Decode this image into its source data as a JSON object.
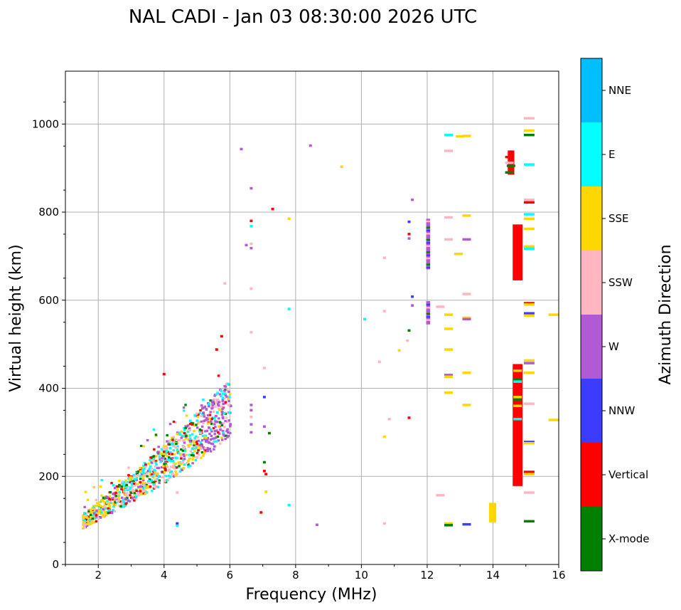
{
  "chart_data": {
    "type": "scatter",
    "title": "NAL CADI - Jan 03 08:30:00 2026 UTC",
    "xlabel": "Frequency (MHz)",
    "ylabel": "Virtual height (km)",
    "xlim": [
      1,
      16
    ],
    "ylim": [
      0,
      1120
    ],
    "xticks": [
      2,
      4,
      6,
      8,
      10,
      12,
      14,
      16
    ],
    "yticks": [
      0,
      200,
      400,
      600,
      800,
      1000
    ],
    "grid": true,
    "colorbar": {
      "title": "Azimuth Direction",
      "categories": [
        {
          "name": "X-mode",
          "color": "#008000"
        },
        {
          "name": "Vertical",
          "color": "#ff0000"
        },
        {
          "name": "NNW",
          "color": "#3c3cff"
        },
        {
          "name": "W",
          "color": "#b25ad4"
        },
        {
          "name": "SSW",
          "color": "#ffb6c1"
        },
        {
          "name": "SSE",
          "color": "#ffd700"
        },
        {
          "name": "E",
          "color": "#00ffff"
        },
        {
          "name": "NNE",
          "color": "#00bfff"
        }
      ]
    },
    "bars": [
      {
        "x0": 14.45,
        "x1": 14.65,
        "y0": 885,
        "y1": 940,
        "dir": "Vertical"
      },
      {
        "x0": 14.6,
        "x1": 14.9,
        "y0": 645,
        "y1": 772,
        "dir": "Vertical"
      },
      {
        "x0": 14.6,
        "x1": 14.9,
        "y0": 178,
        "y1": 455,
        "dir": "Vertical"
      },
      {
        "x0": 13.88,
        "x1": 14.1,
        "y0": 95,
        "y1": 140,
        "dir": "SSE"
      },
      {
        "x0": 11.97,
        "x1": 12.09,
        "y0": 670,
        "y1": 785,
        "dir": "W"
      },
      {
        "x0": 11.97,
        "x1": 12.09,
        "y0": 545,
        "y1": 598,
        "dir": "W"
      }
    ],
    "points": [
      {
        "f": 14.5,
        "h": 925,
        "dir": "Vertical"
      },
      {
        "f": 14.55,
        "h": 905,
        "dir": "X-mode"
      },
      {
        "f": 14.5,
        "h": 912,
        "dir": "SSW"
      },
      {
        "f": 14.5,
        "h": 890,
        "dir": "X-mode"
      },
      {
        "f": 14.75,
        "h": 420,
        "dir": "X-mode"
      },
      {
        "f": 14.75,
        "h": 440,
        "dir": "SSE"
      },
      {
        "f": 14.75,
        "h": 375,
        "dir": "X-mode"
      },
      {
        "f": 14.75,
        "h": 360,
        "dir": "SSE"
      },
      {
        "f": 14.75,
        "h": 330,
        "dir": "E"
      },
      {
        "f": 14.75,
        "h": 415,
        "dir": "E"
      },
      {
        "f": 14.75,
        "h": 380,
        "dir": "SSE"
      },
      {
        "f": 15.1,
        "h": 1013,
        "dir": "SSW"
      },
      {
        "f": 15.1,
        "h": 985,
        "dir": "SSE"
      },
      {
        "f": 15.1,
        "h": 975,
        "dir": "X-mode"
      },
      {
        "f": 15.1,
        "h": 908,
        "dir": "E"
      },
      {
        "f": 15.1,
        "h": 828,
        "dir": "SSW"
      },
      {
        "f": 15.1,
        "h": 822,
        "dir": "Vertical"
      },
      {
        "f": 15.1,
        "h": 795,
        "dir": "E"
      },
      {
        "f": 15.1,
        "h": 785,
        "dir": "SSE"
      },
      {
        "f": 15.1,
        "h": 762,
        "dir": "SSE"
      },
      {
        "f": 15.1,
        "h": 722,
        "dir": "SSE"
      },
      {
        "f": 15.1,
        "h": 717,
        "dir": "E"
      },
      {
        "f": 15.1,
        "h": 593,
        "dir": "Vertical"
      },
      {
        "f": 15.1,
        "h": 590,
        "dir": "SSE"
      },
      {
        "f": 15.1,
        "h": 570,
        "dir": "NNW"
      },
      {
        "f": 15.1,
        "h": 565,
        "dir": "SSE"
      },
      {
        "f": 15.1,
        "h": 463,
        "dir": "SSE"
      },
      {
        "f": 15.1,
        "h": 457,
        "dir": "W"
      },
      {
        "f": 15.1,
        "h": 435,
        "dir": "SSE"
      },
      {
        "f": 15.1,
        "h": 365,
        "dir": "SSW"
      },
      {
        "f": 15.1,
        "h": 278,
        "dir": "NNW"
      },
      {
        "f": 15.1,
        "h": 275,
        "dir": "SSE"
      },
      {
        "f": 15.1,
        "h": 210,
        "dir": "Vertical"
      },
      {
        "f": 15.1,
        "h": 205,
        "dir": "SSE"
      },
      {
        "f": 15.1,
        "h": 163,
        "dir": "SSW"
      },
      {
        "f": 15.1,
        "h": 98,
        "dir": "X-mode"
      },
      {
        "f": 15.85,
        "h": 567,
        "dir": "SSE"
      },
      {
        "f": 15.85,
        "h": 328,
        "dir": "SSE"
      },
      {
        "f": 12.65,
        "h": 975,
        "dir": "E"
      },
      {
        "f": 13.0,
        "h": 972,
        "dir": "SSE"
      },
      {
        "f": 13.2,
        "h": 973,
        "dir": "SSE"
      },
      {
        "f": 12.65,
        "h": 939,
        "dir": "SSW"
      },
      {
        "f": 12.65,
        "h": 788,
        "dir": "SSW"
      },
      {
        "f": 13.2,
        "h": 792,
        "dir": "SSE"
      },
      {
        "f": 12.65,
        "h": 738,
        "dir": "SSW"
      },
      {
        "f": 13.2,
        "h": 738,
        "dir": "W"
      },
      {
        "f": 12.95,
        "h": 705,
        "dir": "SSE"
      },
      {
        "f": 13.2,
        "h": 614,
        "dir": "SSW"
      },
      {
        "f": 12.4,
        "h": 585,
        "dir": "SSW"
      },
      {
        "f": 12.65,
        "h": 567,
        "dir": "SSE"
      },
      {
        "f": 13.2,
        "h": 560,
        "dir": "SSE"
      },
      {
        "f": 13.2,
        "h": 557,
        "dir": "W"
      },
      {
        "f": 12.65,
        "h": 535,
        "dir": "SSE"
      },
      {
        "f": 12.65,
        "h": 488,
        "dir": "SSE"
      },
      {
        "f": 12.65,
        "h": 430,
        "dir": "W"
      },
      {
        "f": 12.65,
        "h": 426,
        "dir": "SSE"
      },
      {
        "f": 13.2,
        "h": 435,
        "dir": "SSE"
      },
      {
        "f": 12.65,
        "h": 390,
        "dir": "SSE"
      },
      {
        "f": 13.2,
        "h": 362,
        "dir": "SSE"
      },
      {
        "f": 12.4,
        "h": 157,
        "dir": "SSW"
      },
      {
        "f": 12.65,
        "h": 93,
        "dir": "SSE"
      },
      {
        "f": 12.65,
        "h": 89,
        "dir": "X-mode"
      },
      {
        "f": 13.2,
        "h": 91,
        "dir": "NNW"
      },
      {
        "f": 11.55,
        "h": 828,
        "dir": "W"
      },
      {
        "f": 11.45,
        "h": 778,
        "dir": "NNW"
      },
      {
        "f": 11.45,
        "h": 750,
        "dir": "Vertical"
      },
      {
        "f": 11.45,
        "h": 740,
        "dir": "W"
      },
      {
        "f": 11.55,
        "h": 608,
        "dir": "NNW"
      },
      {
        "f": 11.55,
        "h": 588,
        "dir": "W"
      },
      {
        "f": 11.45,
        "h": 531,
        "dir": "X-mode"
      },
      {
        "f": 11.4,
        "h": 508,
        "dir": "SSW"
      },
      {
        "f": 11.15,
        "h": 486,
        "dir": "SSE"
      },
      {
        "f": 11.45,
        "h": 333,
        "dir": "Vertical"
      },
      {
        "f": 10.7,
        "h": 696,
        "dir": "SSW"
      },
      {
        "f": 10.7,
        "h": 575,
        "dir": "SSW"
      },
      {
        "f": 10.1,
        "h": 557,
        "dir": "E"
      },
      {
        "f": 10.55,
        "h": 460,
        "dir": "SSW"
      },
      {
        "f": 10.85,
        "h": 330,
        "dir": "SSW"
      },
      {
        "f": 10.7,
        "h": 290,
        "dir": "SSE"
      },
      {
        "f": 10.7,
        "h": 93,
        "dir": "SSW"
      },
      {
        "f": 8.45,
        "h": 951,
        "dir": "W"
      },
      {
        "f": 9.4,
        "h": 903,
        "dir": "SSE"
      },
      {
        "f": 7.8,
        "h": 785,
        "dir": "SSE"
      },
      {
        "f": 7.8,
        "h": 580,
        "dir": "E"
      },
      {
        "f": 7.8,
        "h": 135,
        "dir": "E"
      },
      {
        "f": 8.65,
        "h": 90,
        "dir": "W"
      },
      {
        "f": 7.3,
        "h": 807,
        "dir": "Vertical"
      },
      {
        "f": 7.05,
        "h": 446,
        "dir": "SSW"
      },
      {
        "f": 7.05,
        "h": 380,
        "dir": "NNW"
      },
      {
        "f": 7.05,
        "h": 313,
        "dir": "W"
      },
      {
        "f": 7.2,
        "h": 298,
        "dir": "X-mode"
      },
      {
        "f": 7.05,
        "h": 232,
        "dir": "X-mode"
      },
      {
        "f": 7.05,
        "h": 212,
        "dir": "Vertical"
      },
      {
        "f": 7.1,
        "h": 205,
        "dir": "Vertical"
      },
      {
        "f": 7.1,
        "h": 165,
        "dir": "SSE"
      },
      {
        "f": 6.95,
        "h": 118,
        "dir": "Vertical"
      },
      {
        "f": 6.35,
        "h": 943,
        "dir": "W"
      },
      {
        "f": 6.65,
        "h": 854,
        "dir": "W"
      },
      {
        "f": 6.65,
        "h": 780,
        "dir": "Vertical"
      },
      {
        "f": 6.65,
        "h": 768,
        "dir": "E"
      },
      {
        "f": 6.5,
        "h": 725,
        "dir": "W"
      },
      {
        "f": 6.65,
        "h": 728,
        "dir": "SSW"
      },
      {
        "f": 6.65,
        "h": 718,
        "dir": "W"
      },
      {
        "f": 6.65,
        "h": 626,
        "dir": "SSW"
      },
      {
        "f": 6.65,
        "h": 527,
        "dir": "SSW"
      },
      {
        "f": 6.65,
        "h": 362,
        "dir": "W"
      },
      {
        "f": 6.65,
        "h": 350,
        "dir": "W"
      },
      {
        "f": 6.65,
        "h": 335,
        "dir": "SSW"
      },
      {
        "f": 6.65,
        "h": 318,
        "dir": "W"
      },
      {
        "f": 6.65,
        "h": 300,
        "dir": "W"
      },
      {
        "f": 5.85,
        "h": 638,
        "dir": "SSW"
      },
      {
        "f": 5.75,
        "h": 518,
        "dir": "Vertical"
      },
      {
        "f": 5.6,
        "h": 488,
        "dir": "Vertical"
      },
      {
        "f": 4.0,
        "h": 432,
        "dir": "Vertical"
      },
      {
        "f": 4.4,
        "h": 163,
        "dir": "SSW"
      },
      {
        "f": 4.4,
        "h": 93,
        "dir": "NNW"
      },
      {
        "f": 4.4,
        "h": 88,
        "dir": "E"
      }
    ],
    "cluster": {
      "f_range": [
        1.5,
        6.0
      ],
      "h_range": [
        90,
        375
      ],
      "description": "dense ionospheric echo trace rising from ~1.5 MHz / 100 km to ~6 MHz / 300 km"
    }
  }
}
